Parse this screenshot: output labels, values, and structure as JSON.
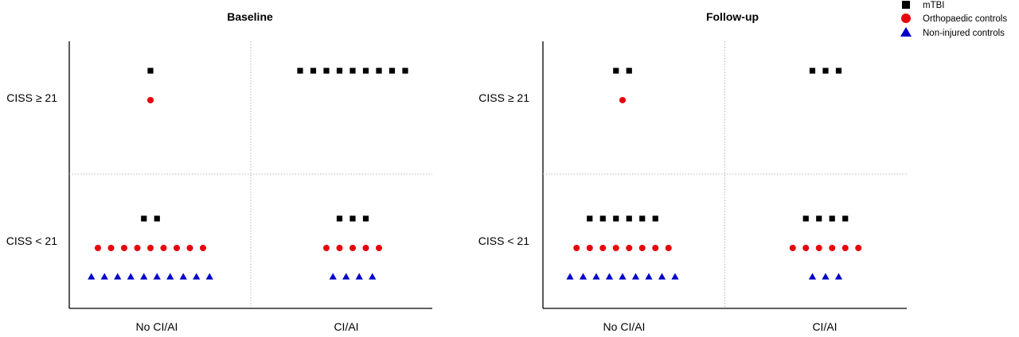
{
  "chart_data": {
    "type": "scatter",
    "subtype": "categorical dot plot (one marker per participant)",
    "legend": {
      "placement": "top-right",
      "entries": [
        {
          "key": "mtbi",
          "label": "mTBI",
          "marker": "square",
          "color": "#000000"
        },
        {
          "key": "ortho",
          "label": "Orthopaedic controls",
          "marker": "circle",
          "color": "#e8000b"
        },
        {
          "key": "noninj",
          "label": "Non-injured controls",
          "marker": "triangle",
          "color": "#0000cc"
        }
      ]
    },
    "x_categories": [
      "No CI/AI",
      "CI/AI"
    ],
    "y_categories": [
      "CISS ≥ 21",
      "CISS < 21"
    ],
    "grid": "dotted quadrant dividers",
    "panels": [
      {
        "title": "Baseline",
        "cells": [
          {
            "x": "No CI/AI",
            "y": "CISS ≥ 21",
            "counts": {
              "mtbi": 1,
              "ortho": 1,
              "noninj": 0
            }
          },
          {
            "x": "CI/AI",
            "y": "CISS ≥ 21",
            "counts": {
              "mtbi": 9,
              "ortho": 0,
              "noninj": 0
            }
          },
          {
            "x": "No CI/AI",
            "y": "CISS < 21",
            "counts": {
              "mtbi": 2,
              "ortho": 9,
              "noninj": 10
            }
          },
          {
            "x": "CI/AI",
            "y": "CISS < 21",
            "counts": {
              "mtbi": 3,
              "ortho": 5,
              "noninj": 4
            }
          }
        ]
      },
      {
        "title": "Follow-up",
        "cells": [
          {
            "x": "No CI/AI",
            "y": "CISS ≥ 21",
            "counts": {
              "mtbi": 2,
              "ortho": 1,
              "noninj": 0
            }
          },
          {
            "x": "CI/AI",
            "y": "CISS ≥ 21",
            "counts": {
              "mtbi": 3,
              "ortho": 0,
              "noninj": 0
            }
          },
          {
            "x": "No CI/AI",
            "y": "CISS < 21",
            "counts": {
              "mtbi": 6,
              "ortho": 8,
              "noninj": 9
            }
          },
          {
            "x": "CI/AI",
            "y": "CISS < 21",
            "counts": {
              "mtbi": 4,
              "ortho": 6,
              "noninj": 3
            }
          }
        ]
      }
    ]
  }
}
